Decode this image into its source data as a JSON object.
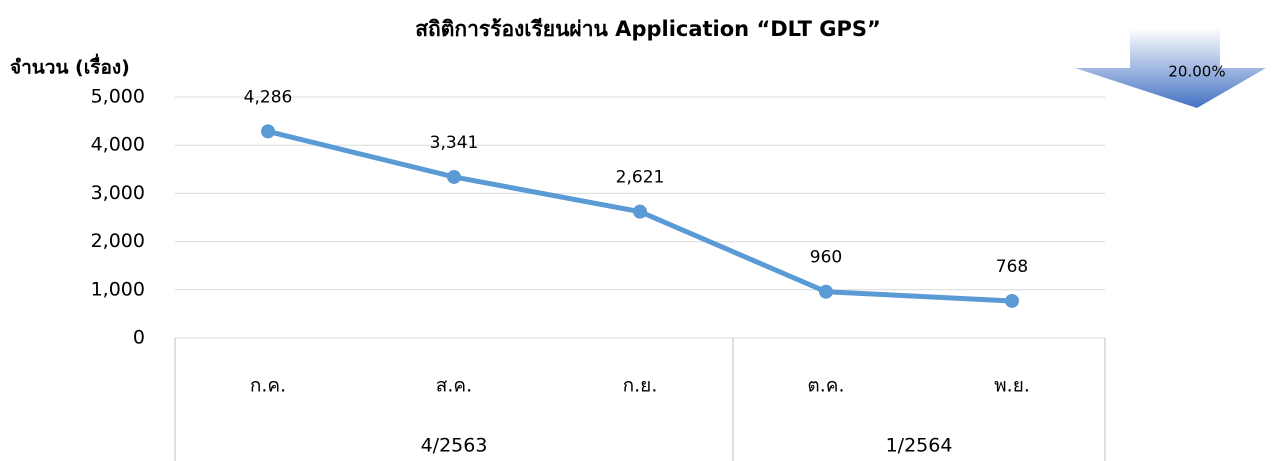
{
  "chart_data": {
    "type": "line",
    "title": "สถิติการร้องเรียนผ่าน Application “DLT GPS”",
    "y_label": "จำนวน (เรื่อง)",
    "annotation": "20.00%",
    "categories": [
      "ก.ค.",
      "ส.ค.",
      "ก.ย.",
      "ต.ค.",
      "พ.ย."
    ],
    "groups": [
      {
        "label": "4/2563",
        "size": 3
      },
      {
        "label": "1/2564",
        "size": 2
      }
    ],
    "values": [
      4286,
      3341,
      2621,
      960,
      768
    ],
    "value_labels": [
      "4,286",
      "3,341",
      "2,621",
      "960",
      "768"
    ],
    "color": "#5b9bd5",
    "ylim": [
      0,
      5000
    ],
    "yticks": [
      0,
      {
        "value": 1000,
        "label": "1,000"
      },
      {
        "value": 2000,
        "label": "2,000"
      },
      {
        "value": 3000,
        "label": "3,000"
      },
      {
        "value": 4000,
        "label": "4,000"
      },
      {
        "value": 5000,
        "label": "5,000"
      }
    ],
    "grid": true
  }
}
